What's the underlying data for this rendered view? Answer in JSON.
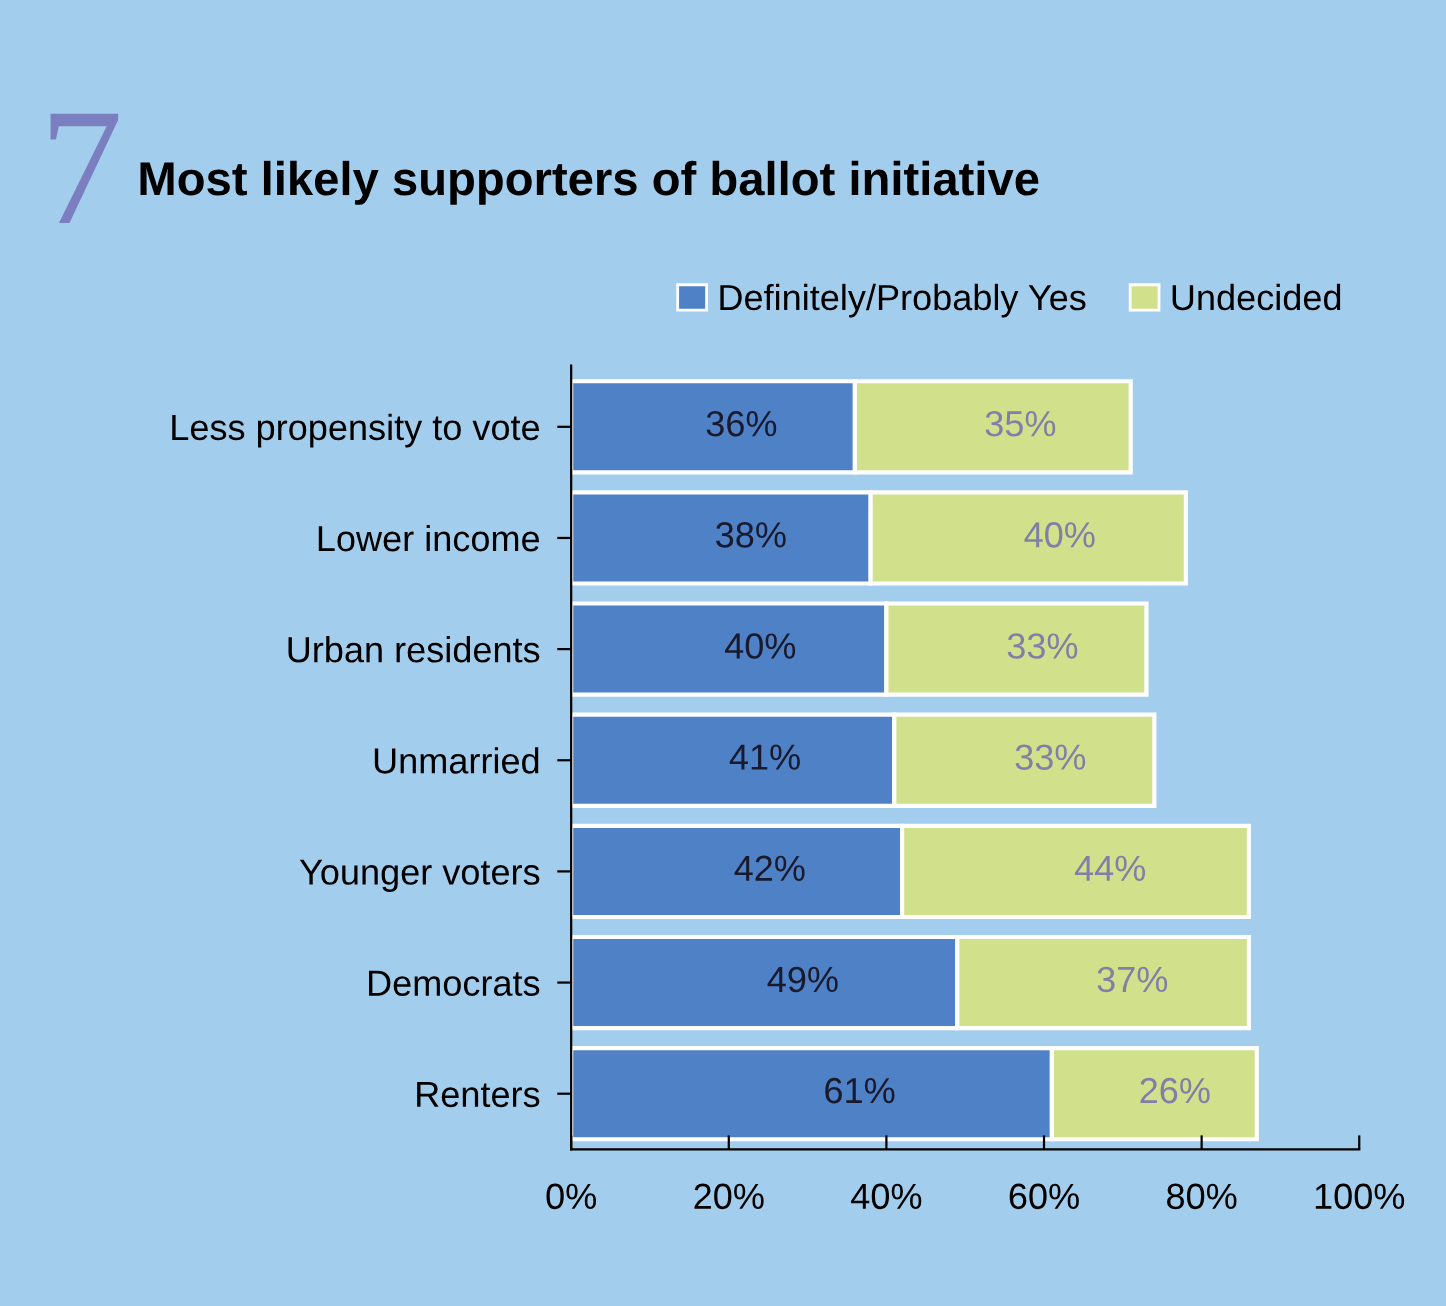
{
  "chart_data": {
    "type": "bar",
    "orientation": "horizontal",
    "stacked": true,
    "title": "Most likely supporters of ballot initiative",
    "annotations": [
      "7"
    ],
    "categories": [
      "Less propensity to vote",
      "Lower income",
      "Urban residents",
      "Unmarried",
      "Younger voters",
      "Democrats",
      "Renters"
    ],
    "series": [
      {
        "name": "Definitely/Probably Yes",
        "color": "#4f81c6",
        "values": [
          36,
          38,
          40,
          41,
          42,
          49,
          61
        ],
        "value_labels": [
          "36%",
          "38%",
          "40%",
          "41%",
          "42%",
          "49%",
          "61%"
        ]
      },
      {
        "name": "Undecided",
        "color": "#d1e08b",
        "values": [
          35,
          40,
          33,
          33,
          44,
          37,
          26
        ],
        "value_labels": [
          "35%",
          "40%",
          "33%",
          "33%",
          "44%",
          "37%",
          "26%"
        ]
      }
    ],
    "xlim": [
      0,
      100
    ],
    "xticks": [
      {
        "value": 0,
        "label": "0%"
      },
      {
        "value": 20,
        "label": "20%"
      },
      {
        "value": 40,
        "label": "40%"
      },
      {
        "value": 60,
        "label": "60%"
      },
      {
        "value": 80,
        "label": "80%"
      },
      {
        "value": 100,
        "label": "100%"
      }
    ],
    "grid": false,
    "legend": "top right"
  }
}
